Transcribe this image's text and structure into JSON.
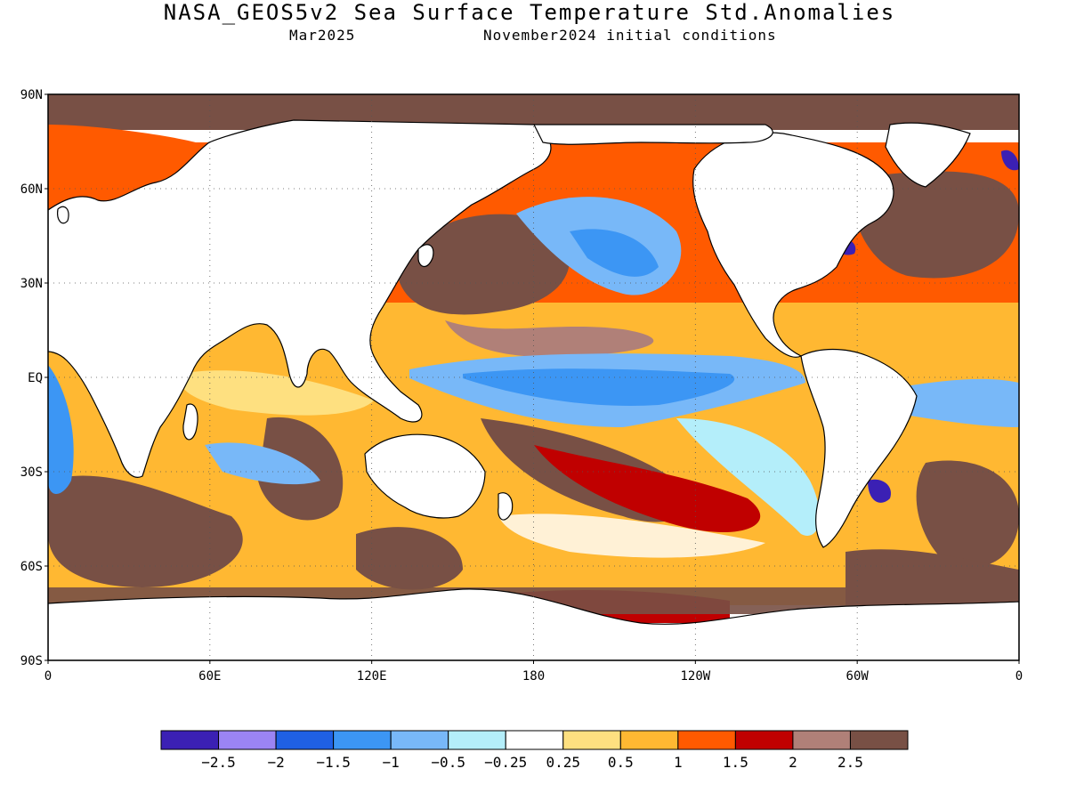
{
  "title": "NASA_GEOS5v2 Sea Surface Temperature Std.Anomalies",
  "subtitle_left": "Mar2025",
  "subtitle_right": "November2024 initial conditions",
  "map": {
    "type": "global-anomaly-map",
    "lon_range": [
      0,
      360
    ],
    "lat_range": [
      -90,
      90
    ],
    "grid": "dotted",
    "y_ticks": [
      {
        "label": "90N",
        "lat": 90
      },
      {
        "label": "60N",
        "lat": 60
      },
      {
        "label": "30N",
        "lat": 30
      },
      {
        "label": "EQ",
        "lat": 0
      },
      {
        "label": "30S",
        "lat": -30
      },
      {
        "label": "60S",
        "lat": -60
      },
      {
        "label": "90S",
        "lat": -90
      }
    ],
    "x_ticks": [
      {
        "label": "0",
        "lon": 0
      },
      {
        "label": "60E",
        "lon": 60
      },
      {
        "label": "120E",
        "lon": 120
      },
      {
        "label": "180",
        "lon": 180
      },
      {
        "label": "120W",
        "lon": 240
      },
      {
        "label": "60W",
        "lon": 300
      },
      {
        "label": "0",
        "lon": 360
      }
    ]
  },
  "colorbar": {
    "colors": [
      "#3b20b4",
      "#9b84f4",
      "#1f60e4",
      "#3c96f4",
      "#78b8f8",
      "#b4eefa",
      "#ffffff",
      "#fee080",
      "#ffb832",
      "#ff5a00",
      "#c00000",
      "#b08078",
      "#785045"
    ],
    "labels": [
      "−2.5",
      "−2",
      "−1.5",
      "−1",
      "−0.5",
      "−0.25",
      "0.25",
      "0.5",
      "1",
      "1.5",
      "2",
      "2.5"
    ]
  },
  "colors": {
    "land": "#ffffff",
    "coast": "#000000",
    "high_anomaly": "#785045"
  }
}
